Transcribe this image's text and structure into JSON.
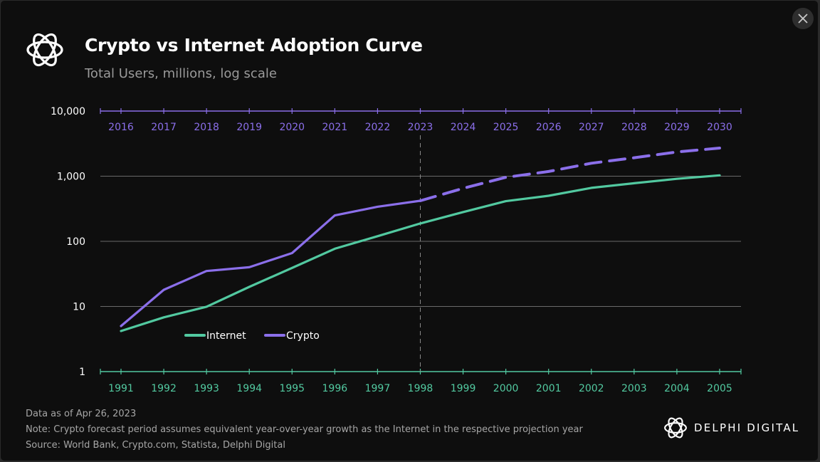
{
  "title": "Crypto vs Internet Adoption Curve",
  "subtitle": "Total Users, millions, log scale",
  "footer": {
    "data_as_of": "Data as of Apr 26, 2023",
    "note": "Note: Crypto forecast period assumes equivalent year-over-year growth as the Internet in the respective projection year",
    "source": "Source: World Bank, Crypto.com, Statista, Delphi Digital"
  },
  "brand": {
    "name": "DELPHI DIGITAL",
    "icon": "delphi-logo-icon"
  },
  "close": {
    "icon": "close-icon"
  },
  "colors": {
    "internet": "#52c9a0",
    "crypto": "#8b6fea",
    "grid": "#8a8a8a",
    "background": "#0e0e0e"
  },
  "chart_data": {
    "type": "line",
    "yscale": "log",
    "ylim": [
      1,
      10000
    ],
    "y_ticks": [
      "1",
      "10",
      "100",
      "1,000",
      "10,000"
    ],
    "y_tick_values": [
      1,
      10,
      100,
      1000,
      10000
    ],
    "x_top": [
      "2016",
      "2017",
      "2018",
      "2019",
      "2020",
      "2021",
      "2022",
      "2023",
      "2024",
      "2025",
      "2026",
      "2027",
      "2028",
      "2029",
      "2030"
    ],
    "x_bottom": [
      "1991",
      "1992",
      "1993",
      "1994",
      "1995",
      "1996",
      "1997",
      "1998",
      "1999",
      "2000",
      "2001",
      "2002",
      "2003",
      "2004",
      "2005"
    ],
    "divider_year": "2023",
    "grid": true,
    "legend_position": "lower-left",
    "series": [
      {
        "name": "Internet",
        "axis": "bottom",
        "style": "solid",
        "values": [
          4.2,
          6.8,
          9.9,
          20,
          39,
          77,
          120,
          188,
          281,
          413,
          500,
          662,
          780,
          910,
          1030
        ]
      },
      {
        "name": "Crypto",
        "axis": "top",
        "style": "solid",
        "values": [
          5,
          18,
          35,
          40,
          66,
          250,
          340,
          420
        ]
      },
      {
        "name": "Crypto",
        "axis": "top",
        "style": "dashed",
        "values": [
          null,
          null,
          null,
          null,
          null,
          null,
          null,
          420,
          650,
          960,
          1180,
          1580,
          1920,
          2350,
          2700
        ]
      }
    ]
  }
}
